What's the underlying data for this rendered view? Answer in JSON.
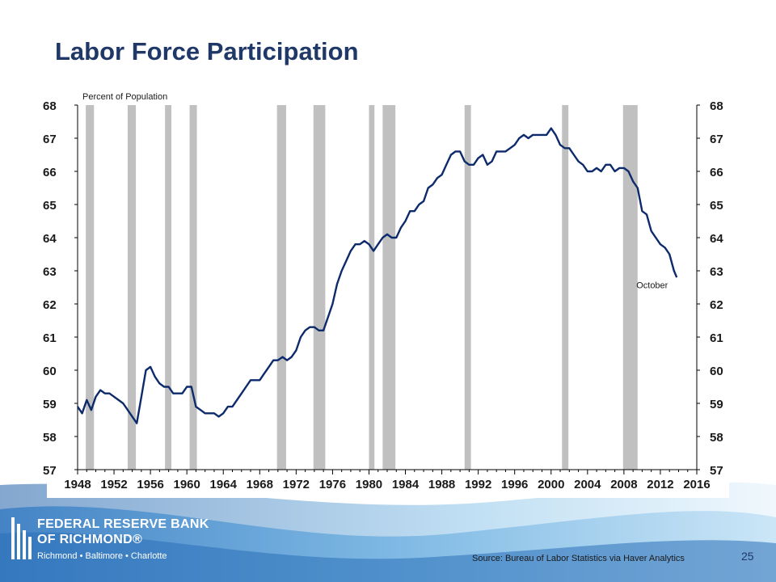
{
  "slide": {
    "title": "Labor Force Participation",
    "page_number": "25",
    "source": "Source: Bureau  of Labor Statistics via Haver Analytics"
  },
  "logo": {
    "line1": "FEDERAL RESERVE BANK",
    "line2": "OF RICHMOND®",
    "line3": "Richmond • Baltimore • Charlotte"
  },
  "colors": {
    "title": "#1f3868",
    "series_line": "#0d2a6b",
    "recession_bars": "#c0c0c0",
    "background_wave": "#4a90d0"
  },
  "chart_data": {
    "type": "line",
    "title": "",
    "ylabel": "Percent of Population",
    "xlabel": "",
    "ylim": [
      57,
      68
    ],
    "xlim": [
      1948,
      2016
    ],
    "y_ticks": [
      57,
      58,
      59,
      60,
      61,
      62,
      63,
      64,
      65,
      66,
      67,
      68
    ],
    "x_ticks": [
      1948,
      1952,
      1956,
      1960,
      1964,
      1968,
      1972,
      1976,
      1980,
      1984,
      1988,
      1992,
      1996,
      2000,
      2004,
      2008,
      2012,
      2016
    ],
    "grid": false,
    "annotations": [
      {
        "text": "October",
        "x": 2013.8,
        "y": 62.6
      }
    ],
    "recessions": [
      [
        1948.9,
        1949.8
      ],
      [
        1953.5,
        1954.4
      ],
      [
        1957.6,
        1958.3
      ],
      [
        1960.3,
        1961.1
      ],
      [
        1969.9,
        1970.9
      ],
      [
        1973.9,
        1975.2
      ],
      [
        1980.0,
        1980.6
      ],
      [
        1981.5,
        1982.9
      ],
      [
        1990.5,
        1991.2
      ],
      [
        2001.2,
        2001.9
      ],
      [
        2007.9,
        2009.5
      ]
    ],
    "series": [
      {
        "x": [
          1948.0,
          1948.5,
          1949.0,
          1949.5,
          1950.0,
          1950.5,
          1951.0,
          1951.5,
          1952.0,
          1952.5,
          1953.0,
          1953.5,
          1954.0,
          1954.5,
          1955.0,
          1955.5,
          1956.0,
          1956.5,
          1957.0,
          1957.5,
          1958.0,
          1958.5,
          1959.0,
          1959.5,
          1960.0,
          1960.5,
          1961.0,
          1961.5,
          1962.0,
          1962.5,
          1963.0,
          1963.5,
          1964.0,
          1964.5,
          1965.0,
          1965.5,
          1966.0,
          1966.5,
          1967.0,
          1967.5,
          1968.0,
          1968.5,
          1969.0,
          1969.5,
          1970.0,
          1970.5,
          1971.0,
          1971.5,
          1972.0,
          1972.5,
          1973.0,
          1973.5,
          1974.0,
          1974.5,
          1975.0,
          1975.5,
          1976.0,
          1976.5,
          1977.0,
          1977.5,
          1978.0,
          1978.5,
          1979.0,
          1979.5,
          1980.0,
          1980.5,
          1981.0,
          1981.5,
          1982.0,
          1982.5,
          1983.0,
          1983.5,
          1984.0,
          1984.5,
          1985.0,
          1985.5,
          1986.0,
          1986.5,
          1987.0,
          1987.5,
          1988.0,
          1988.5,
          1989.0,
          1989.5,
          1990.0,
          1990.5,
          1991.0,
          1991.5,
          1992.0,
          1992.5,
          1993.0,
          1993.5,
          1994.0,
          1994.5,
          1995.0,
          1995.5,
          1996.0,
          1996.5,
          1997.0,
          1997.5,
          1998.0,
          1998.5,
          1999.0,
          1999.5,
          2000.0,
          2000.5,
          2001.0,
          2001.5,
          2002.0,
          2002.5,
          2003.0,
          2003.5,
          2004.0,
          2004.5,
          2005.0,
          2005.5,
          2006.0,
          2006.5,
          2007.0,
          2007.5,
          2008.0,
          2008.5,
          2009.0,
          2009.5,
          2010.0,
          2010.5,
          2011.0,
          2011.5,
          2012.0,
          2012.5,
          2013.0,
          2013.5,
          2013.8
        ],
        "values": [
          58.9,
          58.7,
          59.1,
          58.8,
          59.2,
          59.4,
          59.3,
          59.3,
          59.2,
          59.1,
          59.0,
          58.8,
          58.6,
          58.4,
          59.2,
          60.0,
          60.1,
          59.8,
          59.6,
          59.5,
          59.5,
          59.3,
          59.3,
          59.3,
          59.5,
          59.5,
          58.9,
          58.8,
          58.7,
          58.7,
          58.7,
          58.6,
          58.7,
          58.9,
          58.9,
          59.1,
          59.3,
          59.5,
          59.7,
          59.7,
          59.7,
          59.9,
          60.1,
          60.3,
          60.3,
          60.4,
          60.3,
          60.4,
          60.6,
          61.0,
          61.2,
          61.3,
          61.3,
          61.2,
          61.2,
          61.6,
          62.0,
          62.6,
          63.0,
          63.3,
          63.6,
          63.8,
          63.8,
          63.9,
          63.8,
          63.6,
          63.8,
          64.0,
          64.1,
          64.0,
          64.0,
          64.3,
          64.5,
          64.8,
          64.8,
          65.0,
          65.1,
          65.5,
          65.6,
          65.8,
          65.9,
          66.2,
          66.5,
          66.6,
          66.6,
          66.3,
          66.2,
          66.2,
          66.4,
          66.5,
          66.2,
          66.3,
          66.6,
          66.6,
          66.6,
          66.7,
          66.8,
          67.0,
          67.1,
          67.0,
          67.1,
          67.1,
          67.1,
          67.1,
          67.3,
          67.1,
          66.8,
          66.7,
          66.7,
          66.5,
          66.3,
          66.2,
          66.0,
          66.0,
          66.1,
          66.0,
          66.2,
          66.2,
          66.0,
          66.1,
          66.1,
          66.0,
          65.7,
          65.5,
          64.8,
          64.7,
          64.2,
          64.0,
          63.8,
          63.7,
          63.5,
          63.0,
          62.8
        ]
      }
    ]
  }
}
